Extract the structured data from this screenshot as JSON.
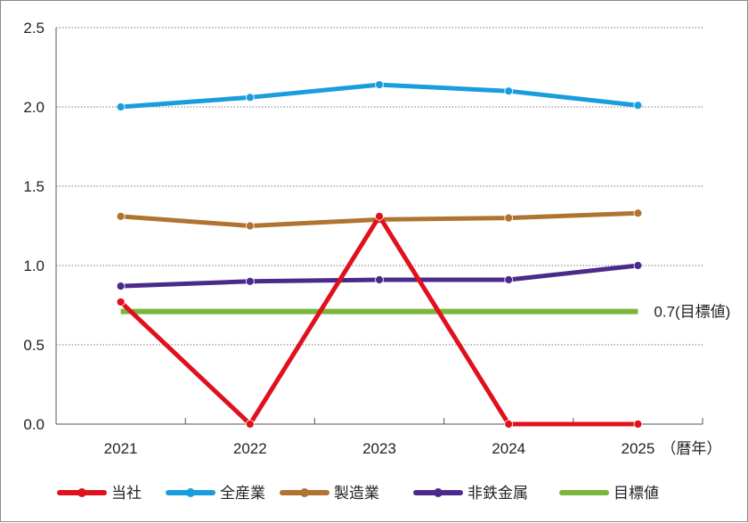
{
  "chart_data": {
    "type": "line",
    "categories": [
      "2021",
      "2022",
      "2023",
      "2024",
      "2025"
    ],
    "x_unit": "（暦年）",
    "ylim": [
      0.0,
      2.5
    ],
    "yticks": [
      "0.0",
      "0.5",
      "1.0",
      "1.5",
      "2.0",
      "2.5"
    ],
    "grid": "horizontal-dotted",
    "legend_position": "bottom",
    "series": [
      {
        "name": "当社",
        "color": "#e0101e",
        "values": [
          0.77,
          0.0,
          1.31,
          0.0,
          0.0
        ]
      },
      {
        "name": "全産業",
        "color": "#1a9ddc",
        "values": [
          2.0,
          2.06,
          2.14,
          2.1,
          2.01
        ]
      },
      {
        "name": "製造業",
        "color": "#b07330",
        "values": [
          1.31,
          1.25,
          1.29,
          1.3,
          1.33
        ]
      },
      {
        "name": "非鉄金属",
        "color": "#4c2a8c",
        "values": [
          0.87,
          0.9,
          0.91,
          0.91,
          1.0
        ]
      }
    ],
    "target": {
      "name": "目標値",
      "color": "#7ab638",
      "value": 0.71,
      "label": "0.7(目標値)"
    }
  }
}
